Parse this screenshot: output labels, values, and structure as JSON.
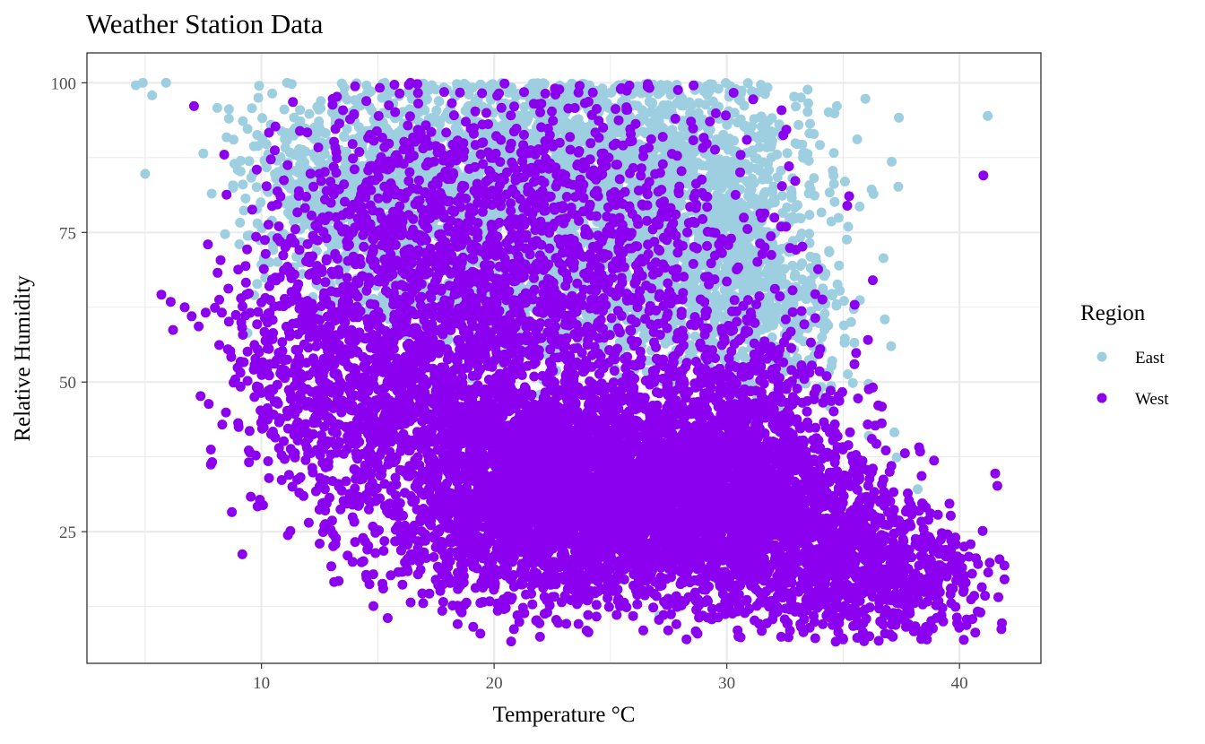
{
  "chart_data": {
    "type": "scatter",
    "title": "Weather Station Data",
    "xlabel": "Temperature °C",
    "ylabel": "Relative Humidity",
    "xlim": [
      2.5,
      43.5
    ],
    "ylim": [
      3,
      105
    ],
    "x_ticks": [
      10,
      20,
      30,
      40
    ],
    "y_ticks": [
      25,
      50,
      75,
      100
    ],
    "grid": true,
    "legend": {
      "title": "Region",
      "placement": "right"
    },
    "series": [
      {
        "name": "East",
        "color": "#9ECFE0",
        "points": [
          [
            4.6,
            99.6
          ],
          [
            4.9,
            100
          ],
          [
            5.0,
            84.8
          ],
          [
            5.3,
            97.9
          ],
          [
            5.9,
            100
          ],
          [
            7.5,
            88.2
          ],
          [
            8.1,
            95.8
          ],
          [
            8.6,
            95.6
          ],
          [
            8.6,
            94.0
          ],
          [
            8.5,
            90.9
          ],
          [
            8.8,
            90.5
          ],
          [
            9.2,
            93.6
          ],
          [
            9.1,
            85.2
          ],
          [
            9.4,
            92.3
          ],
          [
            9.9,
            99.5
          ],
          [
            10.4,
            93.0
          ],
          [
            10.2,
            86.0
          ],
          [
            11.1,
            100
          ],
          [
            11.3,
            99.8
          ],
          [
            11.4,
            94.2
          ],
          [
            11.0,
            90.6
          ],
          [
            11.9,
            88.5
          ],
          [
            12.4,
            96.0
          ],
          [
            13.5,
            97.8
          ],
          [
            14.7,
            98.6
          ],
          [
            15.3,
            100
          ],
          [
            16.8,
            99.8
          ],
          [
            9.2,
            83.0
          ],
          [
            9.5,
            74.5
          ],
          [
            10.1,
            70.7
          ],
          [
            10.5,
            72.8
          ],
          [
            9.4,
            58.2
          ],
          [
            14.1,
            61.0
          ],
          [
            15.6,
            50.9
          ],
          [
            15.0,
            61.5
          ],
          [
            16.3,
            51.2
          ],
          [
            17.2,
            45.6
          ],
          [
            14.4,
            46.7
          ],
          [
            35.2,
            51.3
          ],
          [
            36.1,
            41.0
          ],
          [
            37.2,
            41.6
          ],
          [
            37.3,
            37.4
          ],
          [
            38.2,
            32.1
          ],
          [
            33.6,
            67.0
          ],
          [
            33.7,
            60.0
          ],
          [
            30.1,
            42.3
          ],
          [
            27.2,
            44.0
          ],
          [
            29.1,
            38.0
          ],
          [
            26.7,
            41.5
          ],
          [
            21.7,
            27.6
          ],
          [
            22.5,
            24.0
          ],
          [
            27.1,
            11.0
          ]
        ],
        "clouds": [
          {
            "cx": 24.0,
            "cy": 88.0,
            "sx": 4.5,
            "sy": 8.0,
            "n": 1200
          },
          {
            "cx": 20.5,
            "cy": 80.0,
            "sx": 3.5,
            "sy": 9.0,
            "n": 700
          },
          {
            "cx": 28.5,
            "cy": 76.0,
            "sx": 2.6,
            "sy": 9.0,
            "n": 650
          },
          {
            "cx": 15.5,
            "cy": 80.0,
            "sx": 2.6,
            "sy": 8.0,
            "n": 450
          },
          {
            "cx": 13.0,
            "cy": 83.0,
            "sx": 1.8,
            "sy": 7.0,
            "n": 250
          },
          {
            "cx": 31.0,
            "cy": 67.0,
            "sx": 1.8,
            "sy": 8.0,
            "n": 300
          },
          {
            "cx": 25.5,
            "cy": 63.0,
            "sx": 3.5,
            "sy": 7.0,
            "n": 400
          },
          {
            "cx": 19.0,
            "cy": 65.0,
            "sx": 3.0,
            "sy": 7.0,
            "n": 250
          },
          {
            "cx": 32.5,
            "cy": 57.0,
            "sx": 1.2,
            "sy": 6.0,
            "n": 120
          }
        ]
      },
      {
        "name": "West",
        "color": "#8B00EE",
        "points": [
          [
            7.1,
            96.1
          ],
          [
            8.4,
            88.0
          ],
          [
            8.5,
            81.3
          ],
          [
            7.7,
            73.0
          ],
          [
            9.6,
            78.8
          ],
          [
            9.8,
            85.5
          ],
          [
            10.3,
            76.3
          ],
          [
            10.8,
            73.5
          ],
          [
            5.7,
            64.6
          ],
          [
            6.1,
            63.4
          ],
          [
            6.2,
            58.7
          ],
          [
            6.7,
            62.5
          ],
          [
            7.0,
            61.0
          ],
          [
            7.3,
            59.3
          ],
          [
            7.6,
            61.6
          ],
          [
            8.0,
            62.4
          ],
          [
            8.3,
            61.6
          ],
          [
            8.6,
            60.1
          ],
          [
            8.9,
            61.2
          ],
          [
            9.2,
            57.9
          ],
          [
            9.4,
            55.1
          ],
          [
            9.0,
            68.8
          ],
          [
            8.7,
            54.2
          ],
          [
            9.1,
            53.4
          ],
          [
            9.4,
            50.2
          ],
          [
            10.0,
            63.3
          ],
          [
            10.5,
            58.2
          ],
          [
            10.9,
            55.2
          ],
          [
            10.4,
            48.8
          ],
          [
            10.1,
            42.4
          ],
          [
            10.5,
            41.3
          ],
          [
            10.8,
            43.7
          ],
          [
            11.1,
            44.3
          ],
          [
            11.5,
            42.1
          ],
          [
            9.7,
            47.5
          ],
          [
            12.5,
            32.6
          ],
          [
            12.8,
            29.7
          ],
          [
            12.7,
            26.0
          ],
          [
            13.2,
            23.9
          ],
          [
            12.5,
            23.0
          ],
          [
            13.7,
            21.0
          ],
          [
            14.5,
            17.8
          ],
          [
            13.0,
            19.2
          ],
          [
            14.3,
            19.9
          ],
          [
            16.0,
            21.9
          ],
          [
            15.2,
            16.3
          ],
          [
            17.8,
            16.2
          ],
          [
            19.2,
            15.6
          ],
          [
            19.1,
            9.1
          ],
          [
            20.4,
            13.7
          ],
          [
            23.1,
            9.6
          ],
          [
            24.4,
            10.8
          ],
          [
            27.6,
            11.2
          ],
          [
            30.5,
            7.5
          ],
          [
            31.5,
            8.4
          ],
          [
            32.6,
            9.6
          ],
          [
            33.8,
            7.2
          ],
          [
            35.0,
            7.0
          ],
          [
            35.9,
            6.7
          ],
          [
            36.8,
            8.0
          ],
          [
            37.7,
            9.1
          ],
          [
            38.6,
            7.0
          ],
          [
            39.3,
            10.0
          ],
          [
            40.3,
            9.4
          ],
          [
            40.9,
            11.5
          ],
          [
            41.1,
            14.3
          ],
          [
            41.8,
            8.7
          ],
          [
            41.3,
            19.8
          ],
          [
            40.8,
            19.6
          ],
          [
            40.2,
            22.5
          ],
          [
            39.6,
            20.7
          ],
          [
            38.7,
            24.1
          ],
          [
            37.7,
            25.7
          ],
          [
            39.1,
            13.4
          ],
          [
            40.5,
            13.7
          ],
          [
            36.7,
            30.0
          ],
          [
            37.0,
            35.0
          ],
          [
            37.2,
            27.0
          ],
          [
            22.8,
            98.9
          ],
          [
            25.7,
            98.7
          ],
          [
            27.9,
            98.8
          ],
          [
            16.4,
            100
          ],
          [
            16.7,
            99.8
          ],
          [
            22.2,
            98.2
          ],
          [
            23.9,
            96.6
          ],
          [
            27.8,
            78.0
          ],
          [
            27.2,
            78.1
          ],
          [
            33.8,
            64.7
          ]
        ],
        "clouds": [
          {
            "cx": 25.5,
            "cy": 32.0,
            "sx": 4.5,
            "sy": 8.0,
            "n": 2600
          },
          {
            "cx": 21.0,
            "cy": 38.0,
            "sx": 3.5,
            "sy": 9.0,
            "n": 1000
          },
          {
            "cx": 30.5,
            "cy": 30.0,
            "sx": 3.0,
            "sy": 8.0,
            "n": 1000
          },
          {
            "cx": 33.5,
            "cy": 20.0,
            "sx": 3.0,
            "sy": 7.0,
            "n": 600
          },
          {
            "cx": 36.5,
            "cy": 18.0,
            "sx": 2.3,
            "sy": 6.0,
            "n": 400
          },
          {
            "cx": 15.0,
            "cy": 48.0,
            "sx": 2.6,
            "sy": 10.0,
            "n": 600
          },
          {
            "cx": 12.5,
            "cy": 55.0,
            "sx": 2.0,
            "sy": 11.0,
            "n": 300
          },
          {
            "cx": 19.0,
            "cy": 63.0,
            "sx": 4.0,
            "sy": 12.0,
            "n": 700
          },
          {
            "cx": 24.0,
            "cy": 68.0,
            "sx": 4.5,
            "sy": 13.0,
            "n": 700
          },
          {
            "cx": 16.0,
            "cy": 80.0,
            "sx": 2.5,
            "sy": 8.0,
            "n": 250
          },
          {
            "cx": 22.0,
            "cy": 87.0,
            "sx": 3.5,
            "sy": 7.0,
            "n": 200
          },
          {
            "cx": 30.5,
            "cy": 48.0,
            "sx": 2.0,
            "sy": 7.0,
            "n": 300
          },
          {
            "cx": 22.0,
            "cy": 22.0,
            "sx": 3.5,
            "sy": 6.0,
            "n": 500
          }
        ]
      }
    ]
  }
}
